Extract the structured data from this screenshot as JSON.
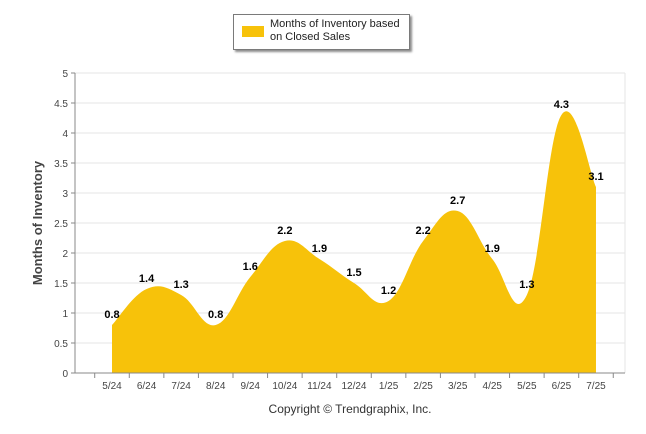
{
  "legend": {
    "label_line1": "Months of Inventory based",
    "label_line2": "on Closed Sales"
  },
  "colors": {
    "series": "#f7c20a",
    "grid": "#e6e6e6",
    "axis_text": "#444444",
    "label_text": "#000000"
  },
  "copyright": "Copyright © Trendgraphix, Inc.",
  "chart_data": {
    "type": "area",
    "title": "",
    "xlabel": "",
    "ylabel": "Months of Inventory",
    "categories": [
      "5/24",
      "6/24",
      "7/24",
      "8/24",
      "9/24",
      "10/24",
      "11/24",
      "12/24",
      "1/25",
      "2/25",
      "3/25",
      "4/25",
      "5/25",
      "6/25",
      "7/25"
    ],
    "series": [
      {
        "name": "Months of Inventory based on Closed Sales",
        "values": [
          0.8,
          1.4,
          1.3,
          0.8,
          1.6,
          2.2,
          1.9,
          1.5,
          1.2,
          2.2,
          2.7,
          1.9,
          1.3,
          4.3,
          3.1
        ]
      }
    ],
    "ylim": [
      0,
      5
    ],
    "yticks": [
      "0",
      "0.5",
      "1",
      "1.5",
      "2",
      "2.5",
      "3",
      "3.5",
      "4",
      "4.5",
      "5"
    ],
    "grid": true,
    "smooth": true,
    "legend_position": "top-center",
    "data_labels": true
  }
}
